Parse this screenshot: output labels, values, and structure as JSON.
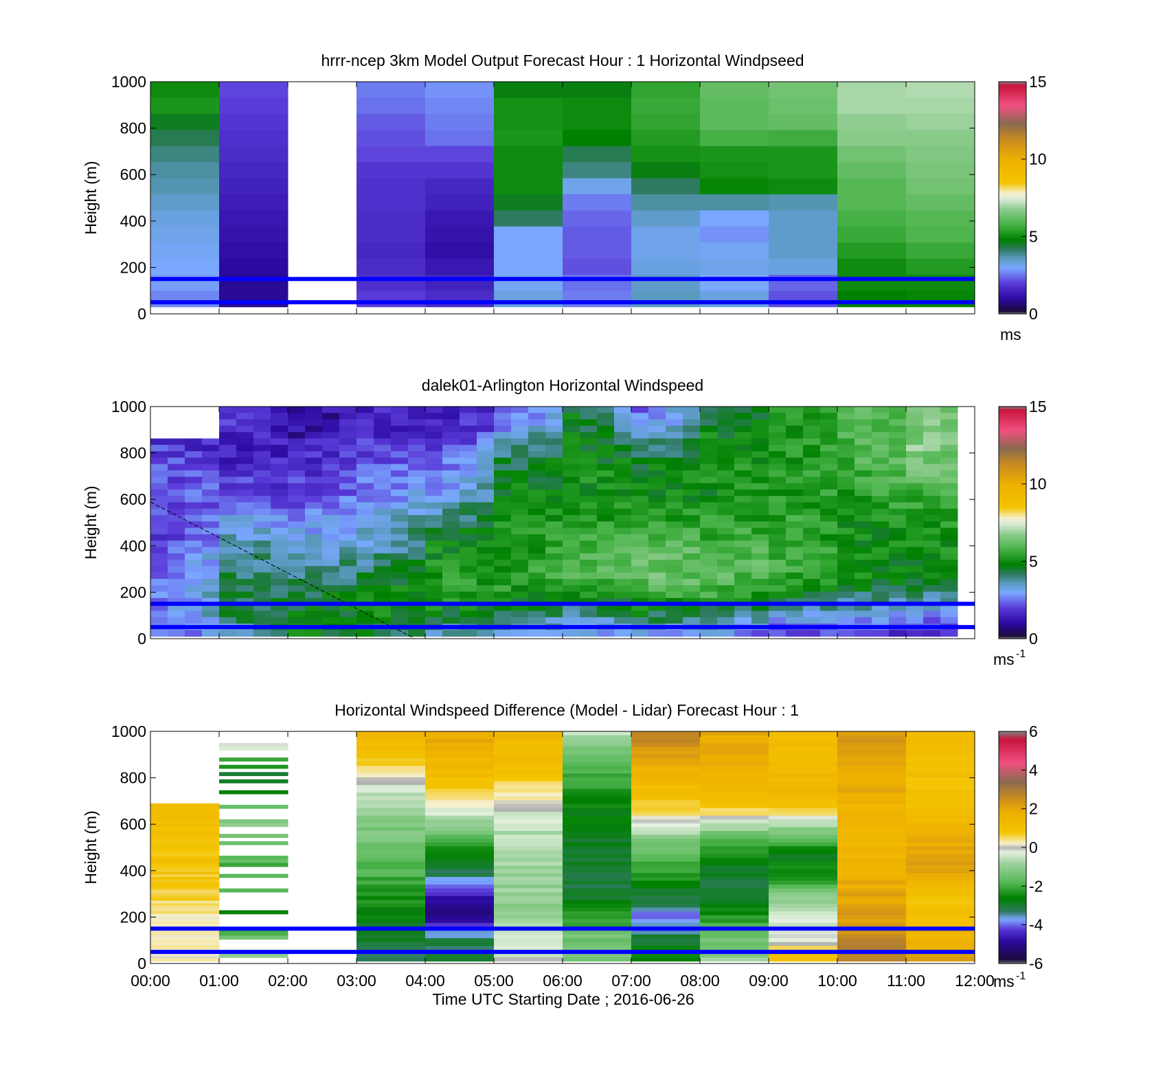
{
  "figure": {
    "xlabel": "Time UTC  Starting Date ; 2016-06-26",
    "x_ticks": [
      "00:00",
      "01:00",
      "02:00",
      "03:00",
      "04:00",
      "05:00",
      "06:00",
      "07:00",
      "08:00",
      "09:00",
      "10:00",
      "11:00",
      "12:00"
    ]
  },
  "chart_data": [
    {
      "type": "heatmap",
      "title": "hrrr-ncep 3km Model Output   Forecast Hour : 1 Horizontal Windpseed",
      "ylabel": "Height (m)",
      "xlim": [
        0,
        12
      ],
      "ylim": [
        0,
        1000
      ],
      "y_ticks": [
        "0",
        "200",
        "400",
        "600",
        "800",
        "1000"
      ],
      "colorbar": {
        "ticks": [
          "0",
          "5",
          "10",
          "15"
        ],
        "range": [
          0,
          15
        ],
        "unit": "ms",
        "unit_sup": "",
        "colormap": "windspeed"
      },
      "reference_lines_m": [
        50,
        150
      ],
      "cells": [
        {
          "x0": 0,
          "x1": 1,
          "y_top": 1000,
          "values": [
            5.0,
            5.2,
            4.6,
            4.3,
            4.0,
            3.8,
            3.7,
            3.5,
            3.3,
            3.2,
            3.1,
            3.0,
            2.9,
            2.7
          ]
        },
        {
          "x0": 1,
          "x1": 2,
          "y_top": 1000,
          "values": [
            2.1,
            2.0,
            1.9,
            1.8,
            1.7,
            1.6,
            1.5,
            1.4,
            1.3,
            1.2,
            1.1,
            1.0,
            0.9,
            0.9
          ]
        },
        {
          "x0": 2,
          "x1": 3,
          "y_top": 1000,
          "values": []
        },
        {
          "x0": 3,
          "x1": 4,
          "y_top": 1000,
          "values": [
            2.6,
            2.5,
            2.3,
            2.2,
            2.1,
            1.9,
            1.8,
            1.8,
            1.7,
            1.7,
            1.6,
            1.7,
            1.8,
            2.0
          ]
        },
        {
          "x0": 4,
          "x1": 5,
          "y_top": 1000,
          "values": [
            2.8,
            2.7,
            2.6,
            2.5,
            2.1,
            1.9,
            1.6,
            1.5,
            1.3,
            1.2,
            1.1,
            1.3,
            1.5,
            1.7
          ]
        },
        {
          "x0": 5,
          "x1": 6,
          "y_top": 1000,
          "values": [
            4.7,
            5.1,
            5.1,
            5.2,
            5.0,
            5.0,
            5.0,
            4.6,
            4.2,
            3.0,
            3.0,
            3.0,
            3.1,
            3.3
          ]
        },
        {
          "x0": 6,
          "x1": 7,
          "y_top": 1000,
          "values": [
            4.7,
            5.0,
            5.0,
            4.8,
            4.3,
            4.0,
            3.2,
            2.6,
            2.4,
            2.3,
            2.3,
            2.2,
            2.5,
            2.6
          ]
        },
        {
          "x0": 7,
          "x1": 8,
          "y_top": 1000,
          "values": [
            5.5,
            5.6,
            5.5,
            5.3,
            5.1,
            4.7,
            4.2,
            3.8,
            3.5,
            3.2,
            3.2,
            3.3,
            3.5,
            3.6
          ]
        },
        {
          "x0": 8,
          "x1": 9,
          "y_top": 1000,
          "values": [
            6.2,
            6.1,
            6.1,
            5.8,
            5.2,
            5.1,
            4.9,
            3.8,
            3.0,
            2.8,
            3.1,
            3.2,
            3.0,
            3.3
          ]
        },
        {
          "x0": 9,
          "x1": 10,
          "y_top": 1000,
          "values": [
            6.4,
            6.3,
            6.2,
            5.7,
            5.2,
            5.2,
            5.0,
            3.7,
            3.5,
            3.5,
            3.5,
            3.3,
            2.4,
            2.2
          ]
        },
        {
          "x0": 10,
          "x1": 11,
          "y_top": 1000,
          "values": [
            7.0,
            7.0,
            6.8,
            6.7,
            6.4,
            6.2,
            6.0,
            6.0,
            5.8,
            5.6,
            5.3,
            5.0,
            5.0,
            4.8
          ]
        },
        {
          "x0": 11,
          "x1": 12,
          "y_top": 1000,
          "values": [
            7.1,
            7.0,
            6.9,
            6.7,
            6.6,
            6.5,
            6.4,
            6.2,
            6.0,
            5.9,
            5.6,
            5.3,
            5.0,
            4.9
          ]
        }
      ]
    },
    {
      "type": "heatmap",
      "title": "dalek01-Arlington  Horizontal Windspeed",
      "ylabel": "Height (m)",
      "xlim": [
        0,
        12
      ],
      "ylim": [
        0,
        1000
      ],
      "y_ticks": [
        "0",
        "200",
        "400",
        "600",
        "800",
        "1000"
      ],
      "colorbar": {
        "ticks": [
          "0",
          "5",
          "10",
          "15"
        ],
        "range": [
          0,
          15
        ],
        "unit": "ms",
        "unit_sup": "-1",
        "colormap": "windspeed"
      },
      "reference_lines_m": [
        50,
        150
      ],
      "profile_interval_h": 0.25,
      "columns_hourly": [
        {
          "hour": 0,
          "values_top_to_bottom": [
            null,
            1.8,
            2.0,
            2.2,
            2.4,
            2.0,
            1.8,
            2.1,
            2.3,
            2.5,
            2.4,
            2.6
          ]
        },
        {
          "hour": 1,
          "values_top_to_bottom": [
            2.0,
            1.6,
            1.5,
            1.8,
            2.0,
            2.6,
            3.5,
            4.0,
            4.2,
            4.3,
            4.5,
            3.2
          ]
        },
        {
          "hour": 2,
          "values_top_to_bottom": [
            1.0,
            1.2,
            1.5,
            1.8,
            2.0,
            2.5,
            3.0,
            3.6,
            4.0,
            4.4,
            4.6,
            4.8
          ]
        },
        {
          "hour": 3,
          "values_top_to_bottom": [
            1.5,
            1.7,
            2.0,
            2.4,
            2.8,
            3.0,
            3.3,
            3.6,
            4.2,
            4.8,
            5.0,
            4.6
          ]
        },
        {
          "hour": 4,
          "values_top_to_bottom": [
            1.2,
            1.5,
            1.9,
            2.4,
            2.8,
            3.6,
            4.6,
            5.0,
            5.2,
            5.4,
            4.8,
            3.6
          ]
        },
        {
          "hour": 5,
          "values_top_to_bottom": [
            2.0,
            2.8,
            3.8,
            4.6,
            4.9,
            5.0,
            5.1,
            5.1,
            5.2,
            5.3,
            4.4,
            3.4
          ]
        },
        {
          "hour": 6,
          "values_top_to_bottom": [
            4.6,
            4.8,
            5.0,
            5.1,
            5.0,
            5.2,
            5.5,
            5.8,
            6.0,
            5.0,
            3.8,
            2.8
          ]
        },
        {
          "hour": 7,
          "values_top_to_bottom": [
            2.4,
            3.0,
            4.0,
            4.8,
            5.0,
            5.3,
            5.6,
            6.2,
            6.4,
            5.6,
            4.6,
            3.2
          ]
        },
        {
          "hour": 8,
          "values_top_to_bottom": [
            4.4,
            4.8,
            5.0,
            5.1,
            5.0,
            5.2,
            5.5,
            6.0,
            6.2,
            5.8,
            4.2,
            3.0
          ]
        },
        {
          "hour": 9,
          "values_top_to_bottom": [
            5.0,
            5.0,
            5.1,
            5.2,
            5.3,
            5.4,
            5.6,
            5.8,
            5.6,
            5.2,
            3.6,
            2.0
          ]
        },
        {
          "hour": 10,
          "values_top_to_bottom": [
            5.8,
            5.9,
            5.8,
            5.6,
            5.4,
            5.2,
            5.0,
            4.9,
            5.0,
            4.4,
            3.4,
            2.0
          ]
        },
        {
          "hour": 11,
          "values_top_to_bottom": [
            6.4,
            6.5,
            6.6,
            6.2,
            5.8,
            5.4,
            5.1,
            5.0,
            5.0,
            4.0,
            3.0,
            1.6
          ]
        }
      ]
    },
    {
      "type": "heatmap",
      "title": "Horizontal Windspeed Difference (Model - Lidar) Forecast Hour : 1",
      "ylabel": "Height (m)",
      "xlim": [
        0,
        12
      ],
      "ylim": [
        0,
        1000
      ],
      "y_ticks": [
        "0",
        "200",
        "400",
        "600",
        "800",
        "1000"
      ],
      "colorbar": {
        "ticks": [
          "-6",
          "-4",
          "-2",
          "0",
          "2",
          "4",
          "6"
        ],
        "range": [
          -6,
          6
        ],
        "unit": "ms",
        "unit_sup": "-1",
        "colormap": "difference"
      },
      "reference_lines_m": [
        50,
        150
      ],
      "columns_hourly": [
        {
          "hour": 0,
          "top_m": 690,
          "values_top_to_bottom": [
            1.2,
            1.0,
            1.1,
            0.9,
            1.0,
            0.8,
            0.7,
            0.5,
            0.4,
            0.3,
            0.2,
            0.1
          ]
        },
        {
          "hour": 1,
          "top_m": 950,
          "sparse": true,
          "values_top_to_bottom": [
            0.0,
            -2.5,
            -3.0,
            -1.6,
            -1.2,
            -1.4,
            -1.8,
            -1.9,
            -2.0,
            -3.2,
            -1.0,
            -1.2
          ]
        },
        {
          "hour": 2,
          "top_m": 0,
          "values_top_to_bottom": []
        },
        {
          "hour": 3,
          "top_m": 1000,
          "values_top_to_bottom": [
            1.4,
            1.2,
            0.1,
            -0.6,
            -1.0,
            -1.3,
            -1.6,
            -2.0,
            -2.4,
            -2.7,
            -3.0,
            -3.3
          ]
        },
        {
          "hour": 4,
          "top_m": 1000,
          "values_top_to_bottom": [
            2.0,
            1.6,
            1.2,
            0.4,
            -0.4,
            -1.6,
            -2.6,
            -3.4,
            -4.6,
            -5.0,
            -3.2,
            -3.0
          ]
        },
        {
          "hour": 5,
          "top_m": 1000,
          "values_top_to_bottom": [
            1.4,
            1.3,
            1.0,
            0.2,
            -0.4,
            -0.6,
            -0.7,
            -0.8,
            -1.0,
            -1.0,
            -0.4,
            -0.2
          ]
        },
        {
          "hour": 6,
          "top_m": 1000,
          "values_top_to_bottom": [
            -0.6,
            -1.4,
            -2.0,
            -2.4,
            -2.6,
            -2.8,
            -3.0,
            -3.1,
            -3.0,
            -2.2,
            -1.4,
            -1.2
          ]
        },
        {
          "hour": 7,
          "top_m": 1000,
          "values_top_to_bottom": [
            2.6,
            2.2,
            1.6,
            1.0,
            0.4,
            -1.0,
            -1.8,
            -2.4,
            -3.0,
            -4.0,
            -3.0,
            -2.4
          ]
        },
        {
          "hour": 8,
          "top_m": 1000,
          "values_top_to_bottom": [
            2.0,
            1.8,
            1.6,
            1.2,
            0.4,
            -1.6,
            -2.6,
            -3.0,
            -3.2,
            -2.2,
            -1.4,
            -1.0
          ]
        },
        {
          "hour": 9,
          "top_m": 1000,
          "values_top_to_bottom": [
            1.2,
            1.2,
            1.4,
            1.6,
            0.2,
            -1.6,
            -2.8,
            -2.4,
            -1.0,
            -0.4,
            -0.2,
            1.0
          ]
        },
        {
          "hour": 10,
          "top_m": 1000,
          "values_top_to_bottom": [
            2.2,
            2.2,
            2.0,
            1.8,
            1.6,
            1.6,
            1.6,
            1.8,
            2.0,
            2.2,
            2.6,
            2.8
          ]
        },
        {
          "hour": 11,
          "top_m": 1000,
          "values_top_to_bottom": [
            1.2,
            1.1,
            1.0,
            1.0,
            1.2,
            1.8,
            2.2,
            1.8,
            1.0,
            1.0,
            1.6,
            2.4
          ]
        }
      ]
    }
  ],
  "colors": {
    "reference_line": "#0000ff",
    "axes": "#000000"
  }
}
